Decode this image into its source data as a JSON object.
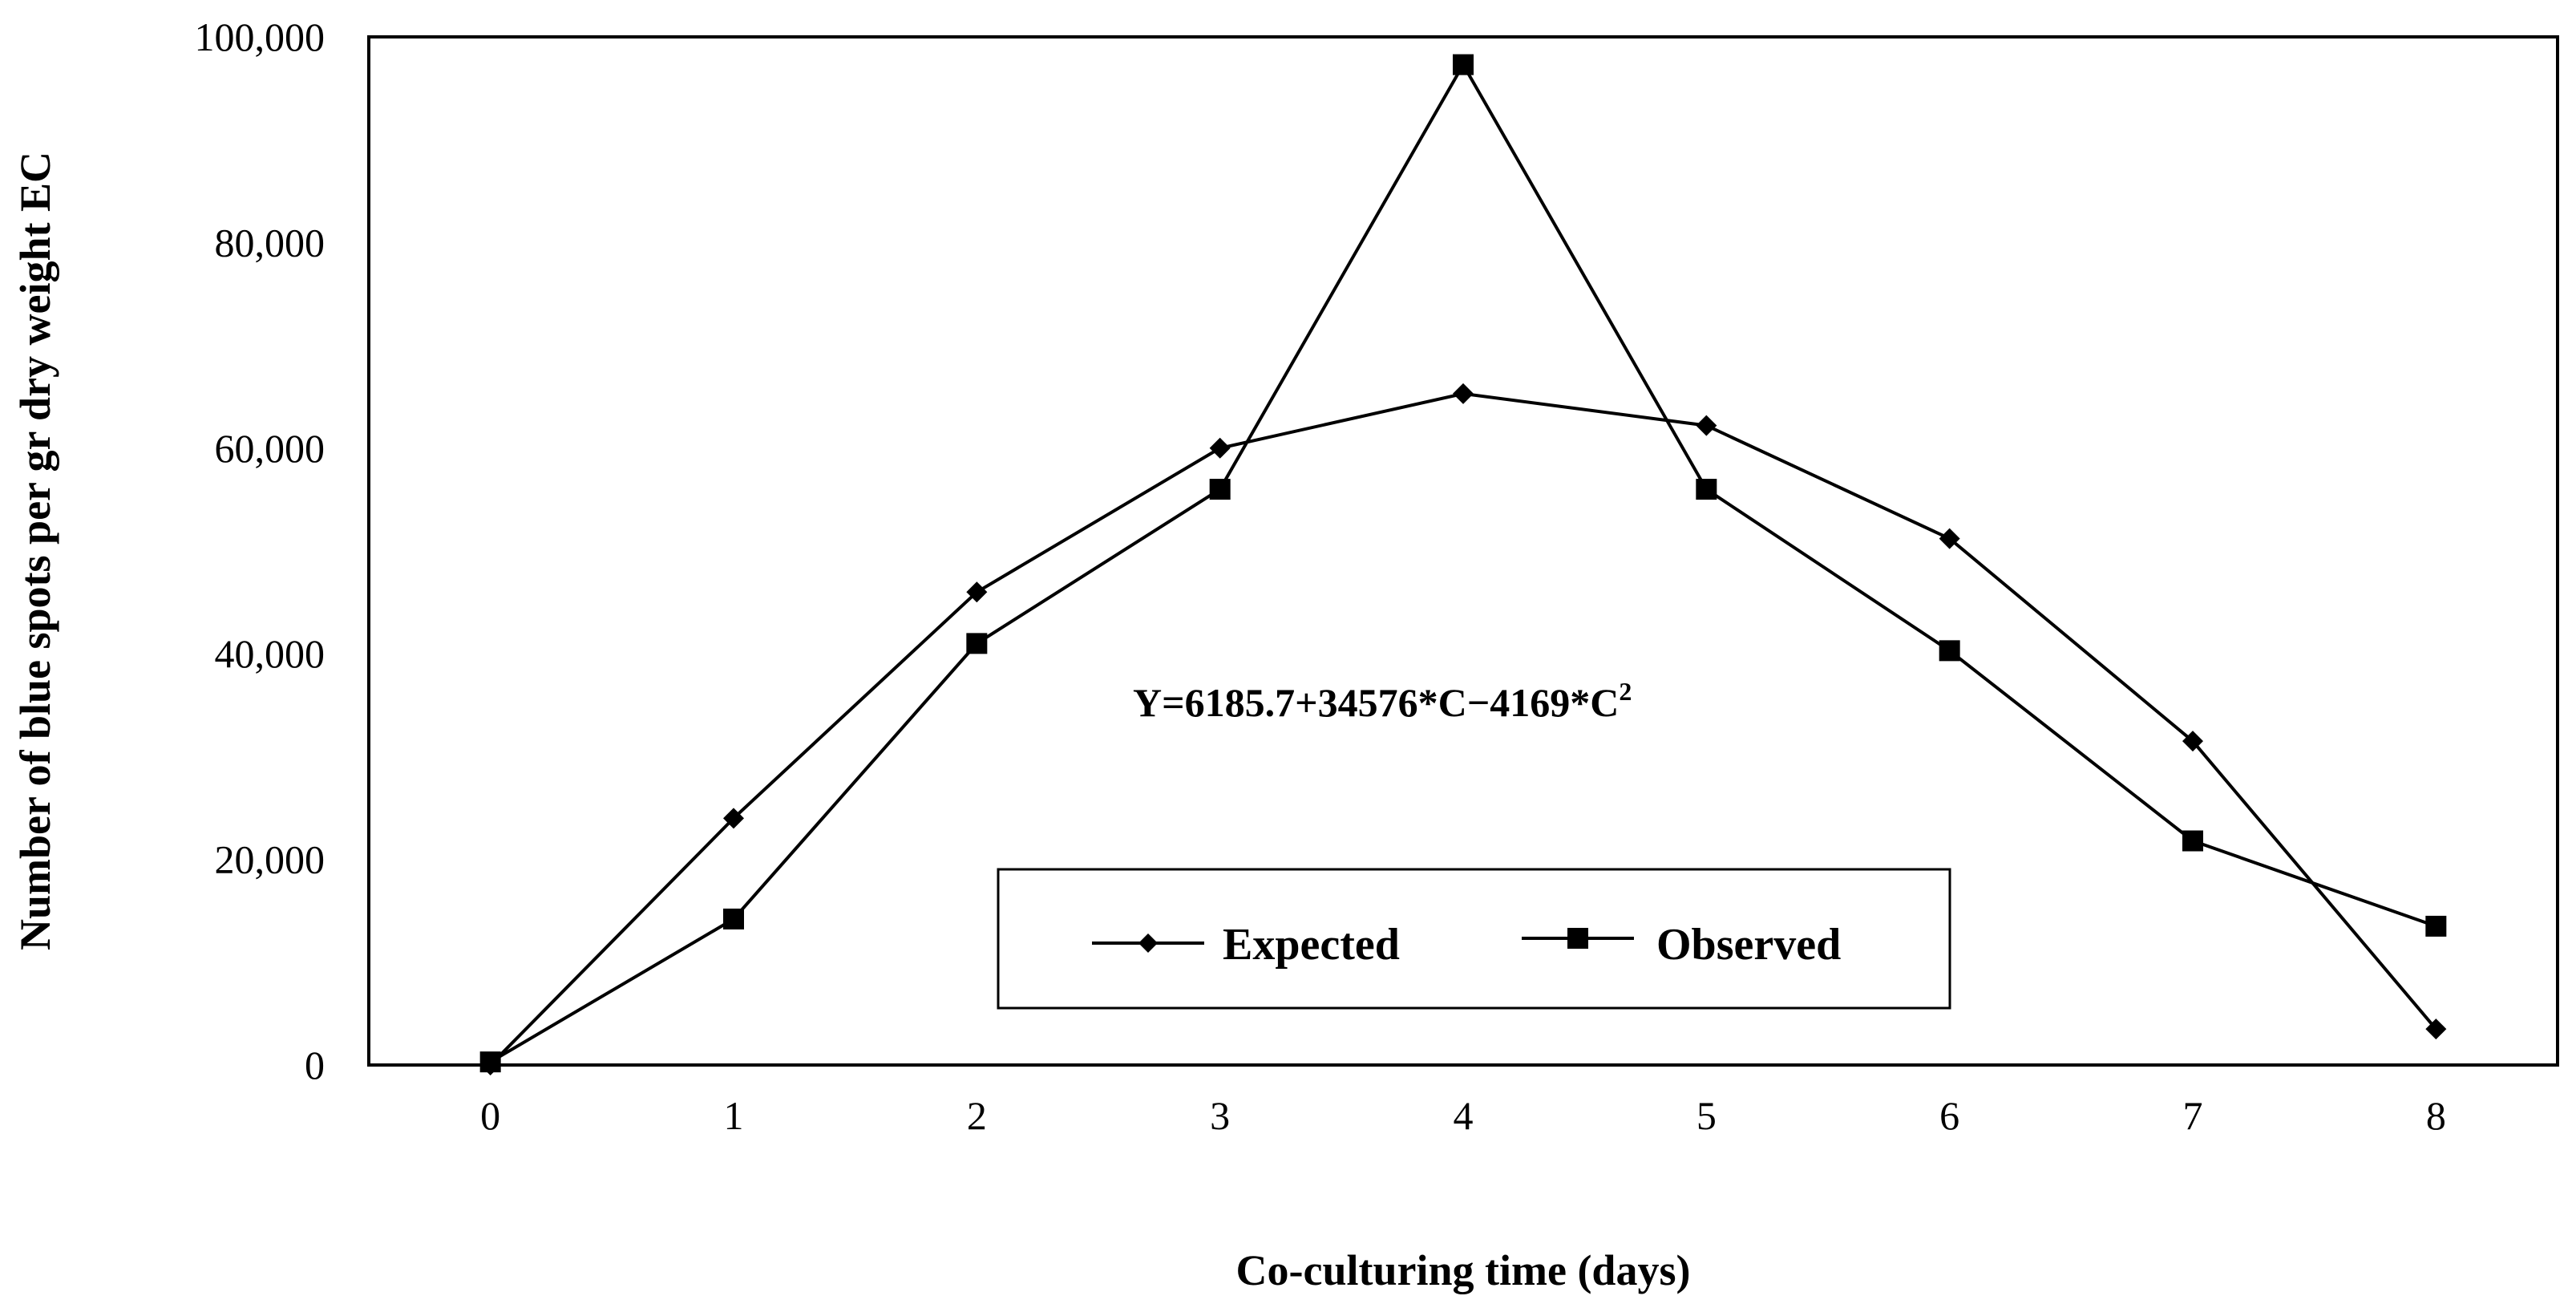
{
  "chart_data": {
    "type": "line",
    "xlabel": "Co-culturing time (days)",
    "ylabel": "Number of blue spots per gr dry weight EC",
    "x": [
      0,
      1,
      2,
      3,
      4,
      5,
      6,
      7,
      8
    ],
    "x_tick_labels": [
      "0",
      "1",
      "2",
      "3",
      "4",
      "5",
      "6",
      "7",
      "8"
    ],
    "xlim": [
      -0.5,
      8.5
    ],
    "ylim": [
      0,
      100000
    ],
    "y_ticks": [
      0,
      20000,
      40000,
      60000,
      80000,
      100000
    ],
    "y_tick_labels": [
      "0",
      "20,000",
      "40,000",
      "60,000",
      "80,000",
      "100,000"
    ],
    "grid": false,
    "legend_position": "bottom-center",
    "series": [
      {
        "name": "Expected",
        "marker": "diamond",
        "color": "#000000",
        "values": [
          0,
          24000,
          46000,
          60000,
          65300,
          62200,
          51200,
          31500,
          3500
        ]
      },
      {
        "name": "Observed",
        "marker": "square",
        "color": "#000000",
        "values": [
          300,
          14200,
          41000,
          56000,
          97300,
          56000,
          40300,
          21800,
          13500
        ]
      }
    ],
    "annotation": {
      "prefix": "Y=6185.7+34576*C−4169*C",
      "superscript": "2"
    }
  }
}
